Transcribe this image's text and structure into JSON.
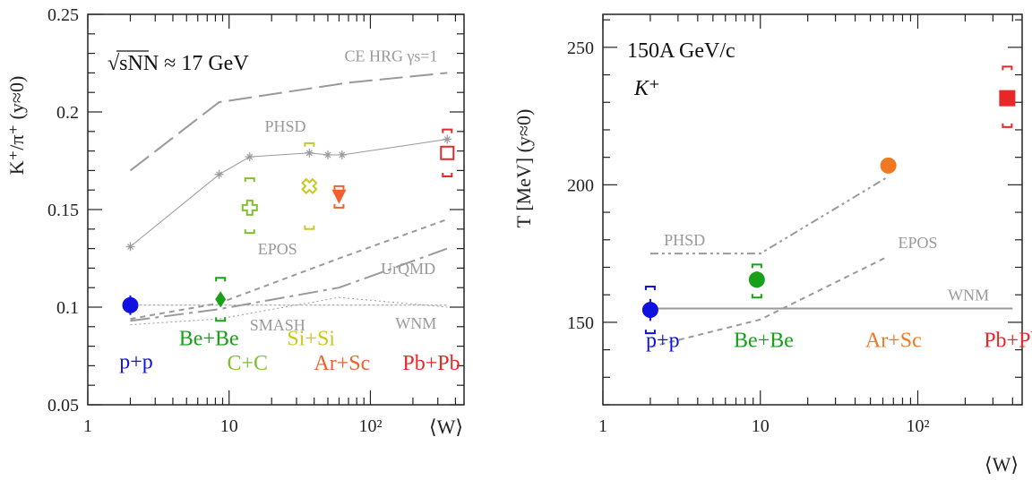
{
  "chart_data": [
    {
      "type": "scatter",
      "xscale": "log",
      "xlabel": "⟨W⟩",
      "ylabel": "K⁺/π⁺ (y≈0)",
      "xlim": [
        1,
        460
      ],
      "ylim": [
        0.05,
        0.25
      ],
      "x_ticks": [
        {
          "value": 1,
          "label": "1"
        },
        {
          "value": 10,
          "label": "10"
        },
        {
          "value": 100,
          "label": "10²"
        }
      ],
      "y_ticks": [
        0.05,
        0.1,
        0.15,
        0.2,
        0.25
      ],
      "y_tick_labels": [
        "0.05",
        "0.1",
        "0.15",
        "0.2",
        "0.25"
      ],
      "annotation": "√sNN ≈ 17 GeV",
      "systems": [
        {
          "name": "p+p",
          "x": 2,
          "y": 0.101,
          "color": "#1010e0",
          "marker": "circle",
          "err": 0.005,
          "sys": null
        },
        {
          "name": "Be+Be",
          "x": 8.7,
          "y": 0.104,
          "color": "#18a018",
          "marker": "diamond",
          "err": 0.003,
          "sys": [
            0.093,
            0.115
          ]
        },
        {
          "name": "C+C",
          "x": 14,
          "y": 0.151,
          "color": "#80c030",
          "marker": "cross-open",
          "err": 0.0,
          "sys": [
            0.138,
            0.166
          ]
        },
        {
          "name": "Si+Si",
          "x": 37,
          "y": 0.162,
          "color": "#c8c820",
          "marker": "x-open",
          "err": 0.0,
          "sys": [
            0.14,
            0.184
          ]
        },
        {
          "name": "Ar+Sc",
          "x": 60,
          "y": 0.157,
          "color": "#f06030",
          "marker": "triangle-down",
          "err": 0.003,
          "sys": [
            0.151,
            0.162
          ]
        },
        {
          "name": "Pb+Pb",
          "x": 350,
          "y": 0.179,
          "color": "#e82828",
          "marker": "square-open",
          "err": 0.0,
          "sys": [
            0.167,
            0.191
          ]
        }
      ],
      "system_labels": [
        {
          "text": "p+p",
          "x": 2.2,
          "y": 0.0685,
          "color": "#1010e0"
        },
        {
          "text": "Be+Be",
          "x": 7.2,
          "y": 0.0805,
          "color": "#18a018"
        },
        {
          "text": "C+C",
          "x": 13.5,
          "y": 0.068,
          "color": "#80c030"
        },
        {
          "text": "Si+Si",
          "x": 38,
          "y": 0.0805,
          "color": "#c8c820"
        },
        {
          "text": "Ar+Sc",
          "x": 63,
          "y": 0.068,
          "color": "#f06030"
        },
        {
          "text": "Pb+Pb",
          "x": 270,
          "y": 0.068,
          "color": "#e82828"
        }
      ],
      "models": [
        {
          "name": "CE HRG γs=1",
          "style": "longdash",
          "width": 2,
          "x": [
            2,
            8.5,
            70,
            350
          ],
          "y": [
            0.17,
            0.205,
            0.215,
            0.22
          ]
        },
        {
          "name": "PHSD",
          "style": "solid-stars",
          "width": 1,
          "x": [
            2,
            8.5,
            14,
            37,
            50,
            63,
            350
          ],
          "y": [
            0.131,
            0.168,
            0.177,
            0.179,
            0.178,
            0.178,
            0.186
          ]
        },
        {
          "name": "EPOS",
          "style": "shortdash",
          "width": 2,
          "x": [
            2,
            8.5,
            60,
            350
          ],
          "y": [
            0.094,
            0.102,
            0.125,
            0.145
          ]
        },
        {
          "name": "UrQMD",
          "style": "dashdot",
          "width": 2,
          "x": [
            2,
            8.5,
            60,
            350
          ],
          "y": [
            0.093,
            0.099,
            0.11,
            0.13
          ]
        },
        {
          "name": "SMASH",
          "style": "dotted",
          "width": 1,
          "x": [
            2,
            8.5,
            60,
            350
          ],
          "y": [
            0.091,
            0.094,
            0.105,
            0.1
          ]
        },
        {
          "name": "WNM",
          "style": "finedash",
          "width": 1,
          "x": [
            2,
            350
          ],
          "y": [
            0.101,
            0.101
          ]
        }
      ],
      "model_labels": [
        {
          "text": "CE HRG γs=1",
          "x": 140,
          "y": 0.226
        },
        {
          "text": "PHSD",
          "x": 25,
          "y": 0.19
        },
        {
          "text": "EPOS",
          "x": 22,
          "y": 0.127
        },
        {
          "text": "UrQMD",
          "x": 185,
          "y": 0.117
        },
        {
          "text": "SMASH",
          "x": 22,
          "y": 0.088
        },
        {
          "text": "WNM",
          "x": 210,
          "y": 0.089
        }
      ]
    },
    {
      "type": "scatter",
      "xscale": "log",
      "xlabel": "⟨W⟩",
      "ylabel": "T [MeV] (y≈0)",
      "xlim": [
        1,
        460
      ],
      "ylim": [
        120,
        262
      ],
      "x_ticks": [
        {
          "value": 1,
          "label": "1"
        },
        {
          "value": 10,
          "label": "10"
        },
        {
          "value": 100,
          "label": "10²"
        }
      ],
      "y_ticks": [
        150,
        200,
        250
      ],
      "y_tick_labels": [
        "150",
        "200",
        "250"
      ],
      "annotations": [
        "150A GeV/c",
        "K⁺"
      ],
      "systems": [
        {
          "name": "p+p",
          "x": 2,
          "y": 154.5,
          "color": "#1010e0",
          "marker": "circle",
          "err": 4,
          "sys": [
            146,
            163
          ]
        },
        {
          "name": "Be+Be",
          "x": 9.5,
          "y": 165.5,
          "color": "#18a018",
          "marker": "circle",
          "err": 3,
          "sys": [
            159,
            171
          ]
        },
        {
          "name": "Ar+Sc",
          "x": 65,
          "y": 207,
          "color": "#f07820",
          "marker": "circle",
          "err": 0,
          "sys": null
        },
        {
          "name": "Pb+Pb",
          "x": 370,
          "y": 231.5,
          "color": "#e82828",
          "marker": "square",
          "err": 0,
          "sys": [
            221,
            243
          ]
        }
      ],
      "system_labels": [
        {
          "text": "p+p",
          "x": 2.4,
          "y": 141,
          "color": "#1010e0"
        },
        {
          "text": "Be+Be",
          "x": 10.5,
          "y": 141,
          "color": "#18a018"
        },
        {
          "text": "Ar+Sc",
          "x": 70,
          "y": 141,
          "color": "#f07820"
        },
        {
          "text": "Pb+Pb",
          "x": 400,
          "y": 141,
          "color": "#e82828"
        }
      ],
      "models": [
        {
          "name": "PHSD",
          "style": "dashdotdot",
          "width": 2,
          "x": [
            2,
            10,
            65
          ],
          "y": [
            175,
            175,
            203
          ]
        },
        {
          "name": "EPOS",
          "style": "shortdash",
          "width": 2,
          "x": [
            2,
            10,
            65
          ],
          "y": [
            141,
            151,
            174
          ]
        },
        {
          "name": "WNM",
          "style": "solid",
          "width": 2,
          "x": [
            2,
            400
          ],
          "y": [
            155,
            155
          ]
        }
      ],
      "model_labels": [
        {
          "text": "PHSD",
          "x": 3.3,
          "y": 178
        },
        {
          "text": "EPOS",
          "x": 100,
          "y": 177
        },
        {
          "text": "WNM",
          "x": 210,
          "y": 158
        }
      ]
    }
  ]
}
